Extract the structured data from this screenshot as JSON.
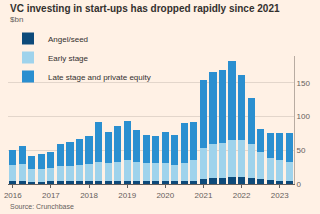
{
  "chart_data": {
    "type": "bar",
    "title": "VC investing in start-ups has dropped rapidly since 2021",
    "subtitle": "$bn",
    "source": "Source: Crunchbase",
    "categories": [
      "2016",
      null,
      null,
      null,
      "2017",
      null,
      null,
      null,
      "2018",
      null,
      null,
      null,
      "2019",
      null,
      null,
      null,
      "2020",
      null,
      null,
      null,
      "2021",
      null,
      null,
      null,
      "2022",
      null,
      null,
      null,
      "2023",
      null
    ],
    "series": [
      {
        "name": "Angel/seed",
        "color": "#0d4a7a",
        "values": [
          4,
          4,
          3,
          3,
          4,
          4,
          4,
          4,
          5,
          5,
          5,
          5,
          5,
          5,
          5,
          5,
          5,
          4,
          5,
          5,
          8,
          9,
          9,
          10,
          10,
          9,
          7,
          6,
          5,
          5
        ]
      },
      {
        "name": "Early stage",
        "color": "#9fd3ec",
        "values": [
          24,
          25,
          20,
          20,
          20,
          22,
          22,
          24,
          24,
          28,
          26,
          28,
          30,
          28,
          26,
          26,
          26,
          24,
          26,
          30,
          45,
          50,
          52,
          55,
          55,
          50,
          40,
          32,
          30,
          28
        ]
      },
      {
        "name": "Late stage and private equity",
        "color": "#2a8fd0",
        "values": [
          22,
          27,
          19,
          21,
          24,
          34,
          37,
          39,
          42,
          59,
          46,
          53,
          59,
          47,
          41,
          40,
          46,
          44,
          60,
          57,
          102,
          107,
          108,
          118,
          97,
          68,
          35,
          38,
          41,
          43
        ]
      }
    ],
    "stacked": true,
    "ylim": [
      0,
      190
    ],
    "yticks": [
      0,
      50,
      100,
      150
    ],
    "grid": true,
    "legend": "top left"
  }
}
